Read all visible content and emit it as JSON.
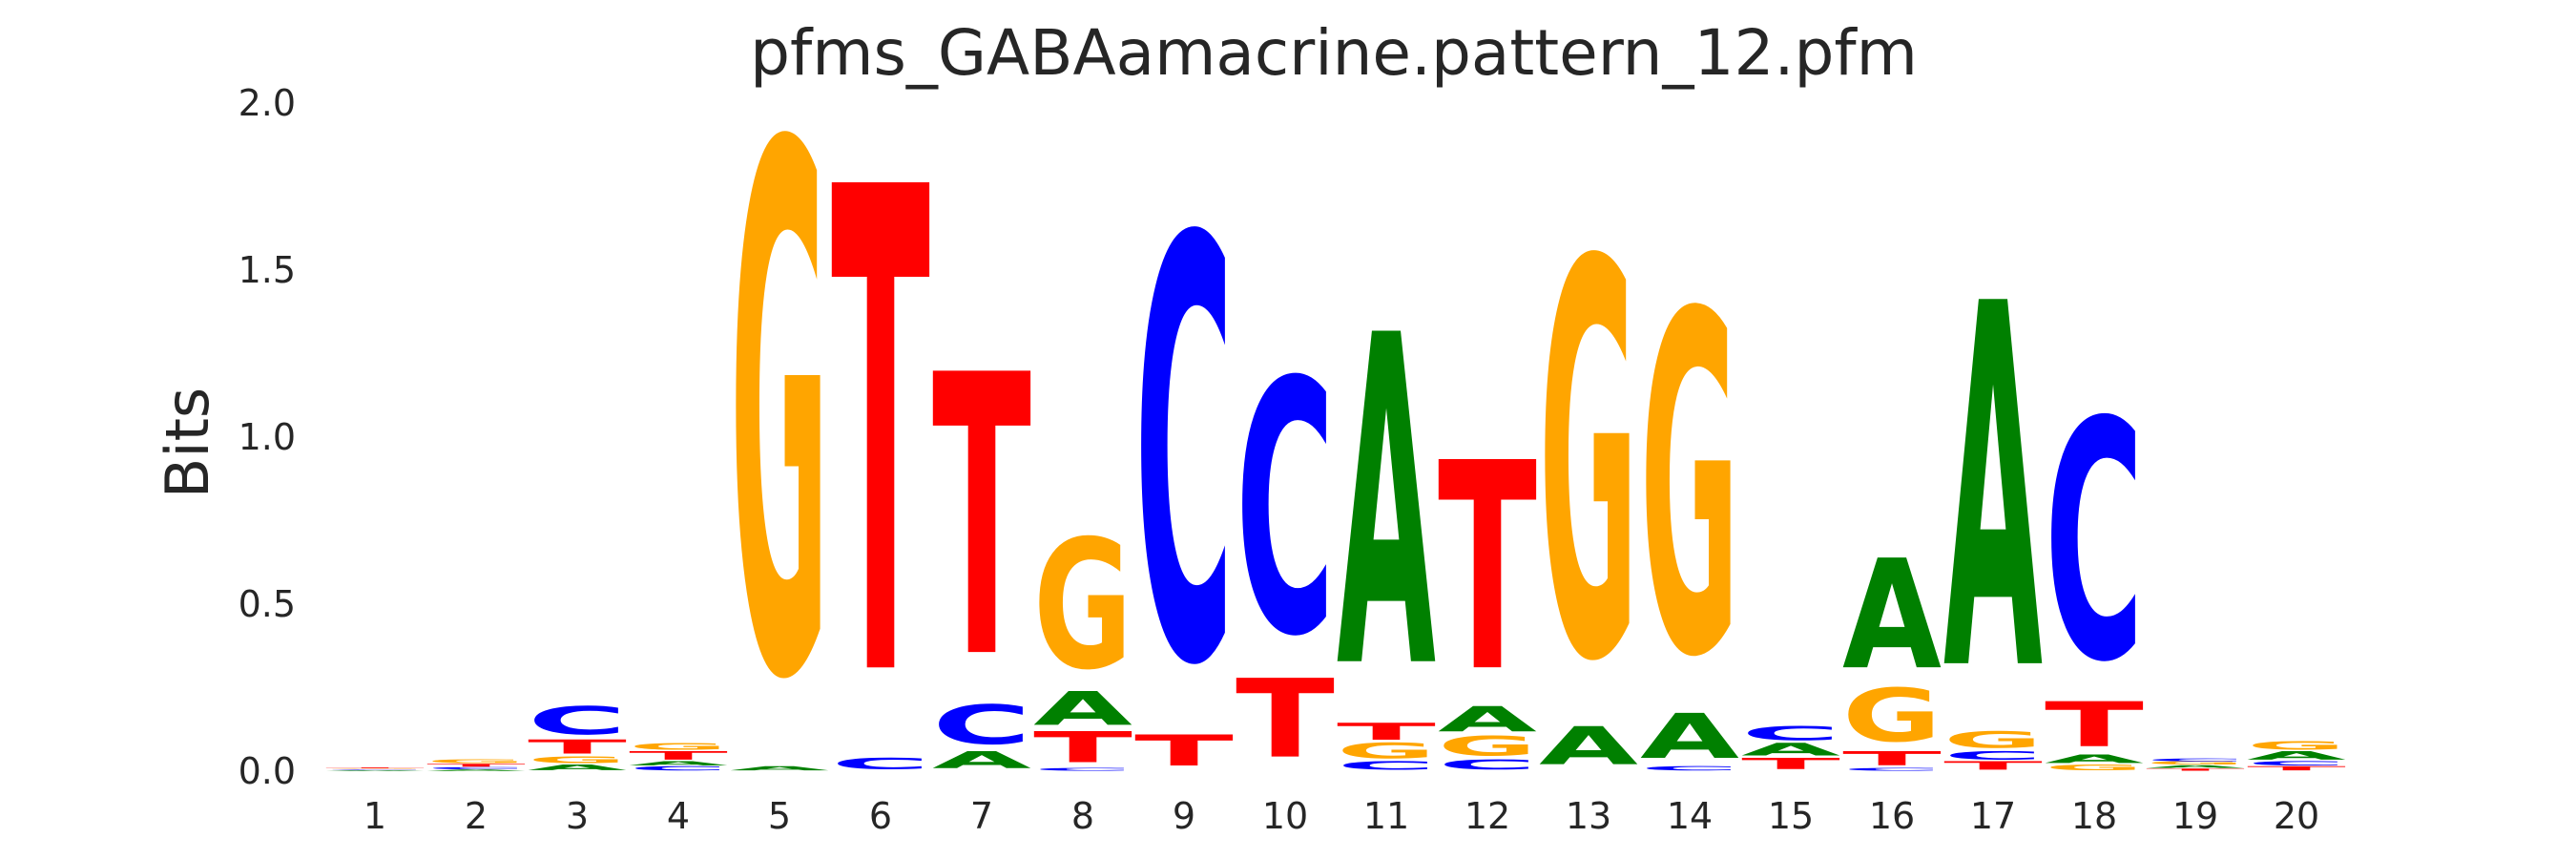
{
  "chart_data": {
    "type": "sequence-logo",
    "title": "pfms_GABAamacrine.pattern_12.pfm",
    "xlabel": "",
    "ylabel": "Bits",
    "ylim": [
      0,
      2.0
    ],
    "yticks": [
      "0.0",
      "0.5",
      "1.0",
      "1.5",
      "2.0"
    ],
    "ytick_values": [
      0,
      0.5,
      1.0,
      1.5,
      2.0
    ],
    "positions": [
      "1",
      "2",
      "3",
      "4",
      "5",
      "6",
      "7",
      "8",
      "9",
      "10",
      "11",
      "12",
      "13",
      "14",
      "15",
      "16",
      "17",
      "18",
      "19",
      "20"
    ],
    "grid": false,
    "colors": {
      "A": "#008000",
      "C": "#0000ff",
      "G": "#ffa500",
      "T": "#ff0000"
    },
    "stacks": [
      [
        [
          "A",
          0.003
        ],
        [
          "C",
          0.002
        ],
        [
          "G",
          0.003
        ],
        [
          "T",
          0.003
        ]
      ],
      [
        [
          "A",
          0.005
        ],
        [
          "C",
          0.007
        ],
        [
          "T",
          0.01
        ],
        [
          "G",
          0.012
        ]
      ],
      [
        [
          "A",
          0.02
        ],
        [
          "G",
          0.025
        ],
        [
          "T",
          0.05
        ],
        [
          "C",
          0.1
        ]
      ],
      [
        [
          "C",
          0.015
        ],
        [
          "A",
          0.015
        ],
        [
          "T",
          0.03
        ],
        [
          "G",
          0.025
        ]
      ],
      [
        [
          "A",
          0.015
        ],
        [
          "G",
          1.875
        ]
      ],
      [
        [
          "C",
          0.04
        ],
        [
          "T",
          1.725
        ]
      ],
      [
        [
          "A",
          0.06
        ],
        [
          "C",
          0.14
        ],
        [
          "T",
          1.0
        ]
      ],
      [
        [
          "C",
          0.01
        ],
        [
          "T",
          0.11
        ],
        [
          "A",
          0.12
        ],
        [
          "G",
          0.46
        ]
      ],
      [
        [
          "T",
          0.11
        ],
        [
          "C",
          1.5
        ]
      ],
      [
        [
          "T",
          0.28
        ],
        [
          "C",
          0.9
        ]
      ],
      [
        [
          "C",
          0.03
        ],
        [
          "G",
          0.055
        ],
        [
          "T",
          0.06
        ],
        [
          "A",
          1.175
        ]
      ],
      [
        [
          "C",
          0.035
        ],
        [
          "G",
          0.07
        ],
        [
          "A",
          0.09
        ],
        [
          "T",
          0.74
        ]
      ],
      [
        [
          "A",
          0.135
        ],
        [
          "G",
          1.405
        ]
      ],
      [
        [
          "C",
          0.015
        ],
        [
          "A",
          0.16
        ],
        [
          "G",
          1.21
        ]
      ],
      [
        [
          "T",
          0.04
        ],
        [
          "A",
          0.045
        ],
        [
          "C",
          0.05
        ]
      ],
      [
        [
          "C",
          0.01
        ],
        [
          "T",
          0.05
        ],
        [
          "G",
          0.19
        ],
        [
          "A",
          0.39
        ]
      ],
      [
        [
          "T",
          0.03
        ],
        [
          "C",
          0.03
        ],
        [
          "G",
          0.06
        ],
        [
          "A",
          1.295
        ]
      ],
      [
        [
          "G",
          0.02
        ],
        [
          "A",
          0.03
        ],
        [
          "T",
          0.16
        ],
        [
          "C",
          0.85
        ]
      ],
      [
        [
          "T",
          0.008
        ],
        [
          "A",
          0.01
        ],
        [
          "G",
          0.01
        ],
        [
          "C",
          0.01
        ]
      ],
      [
        [
          "T",
          0.015
        ],
        [
          "C",
          0.015
        ],
        [
          "A",
          0.03
        ],
        [
          "G",
          0.03
        ]
      ]
    ]
  }
}
